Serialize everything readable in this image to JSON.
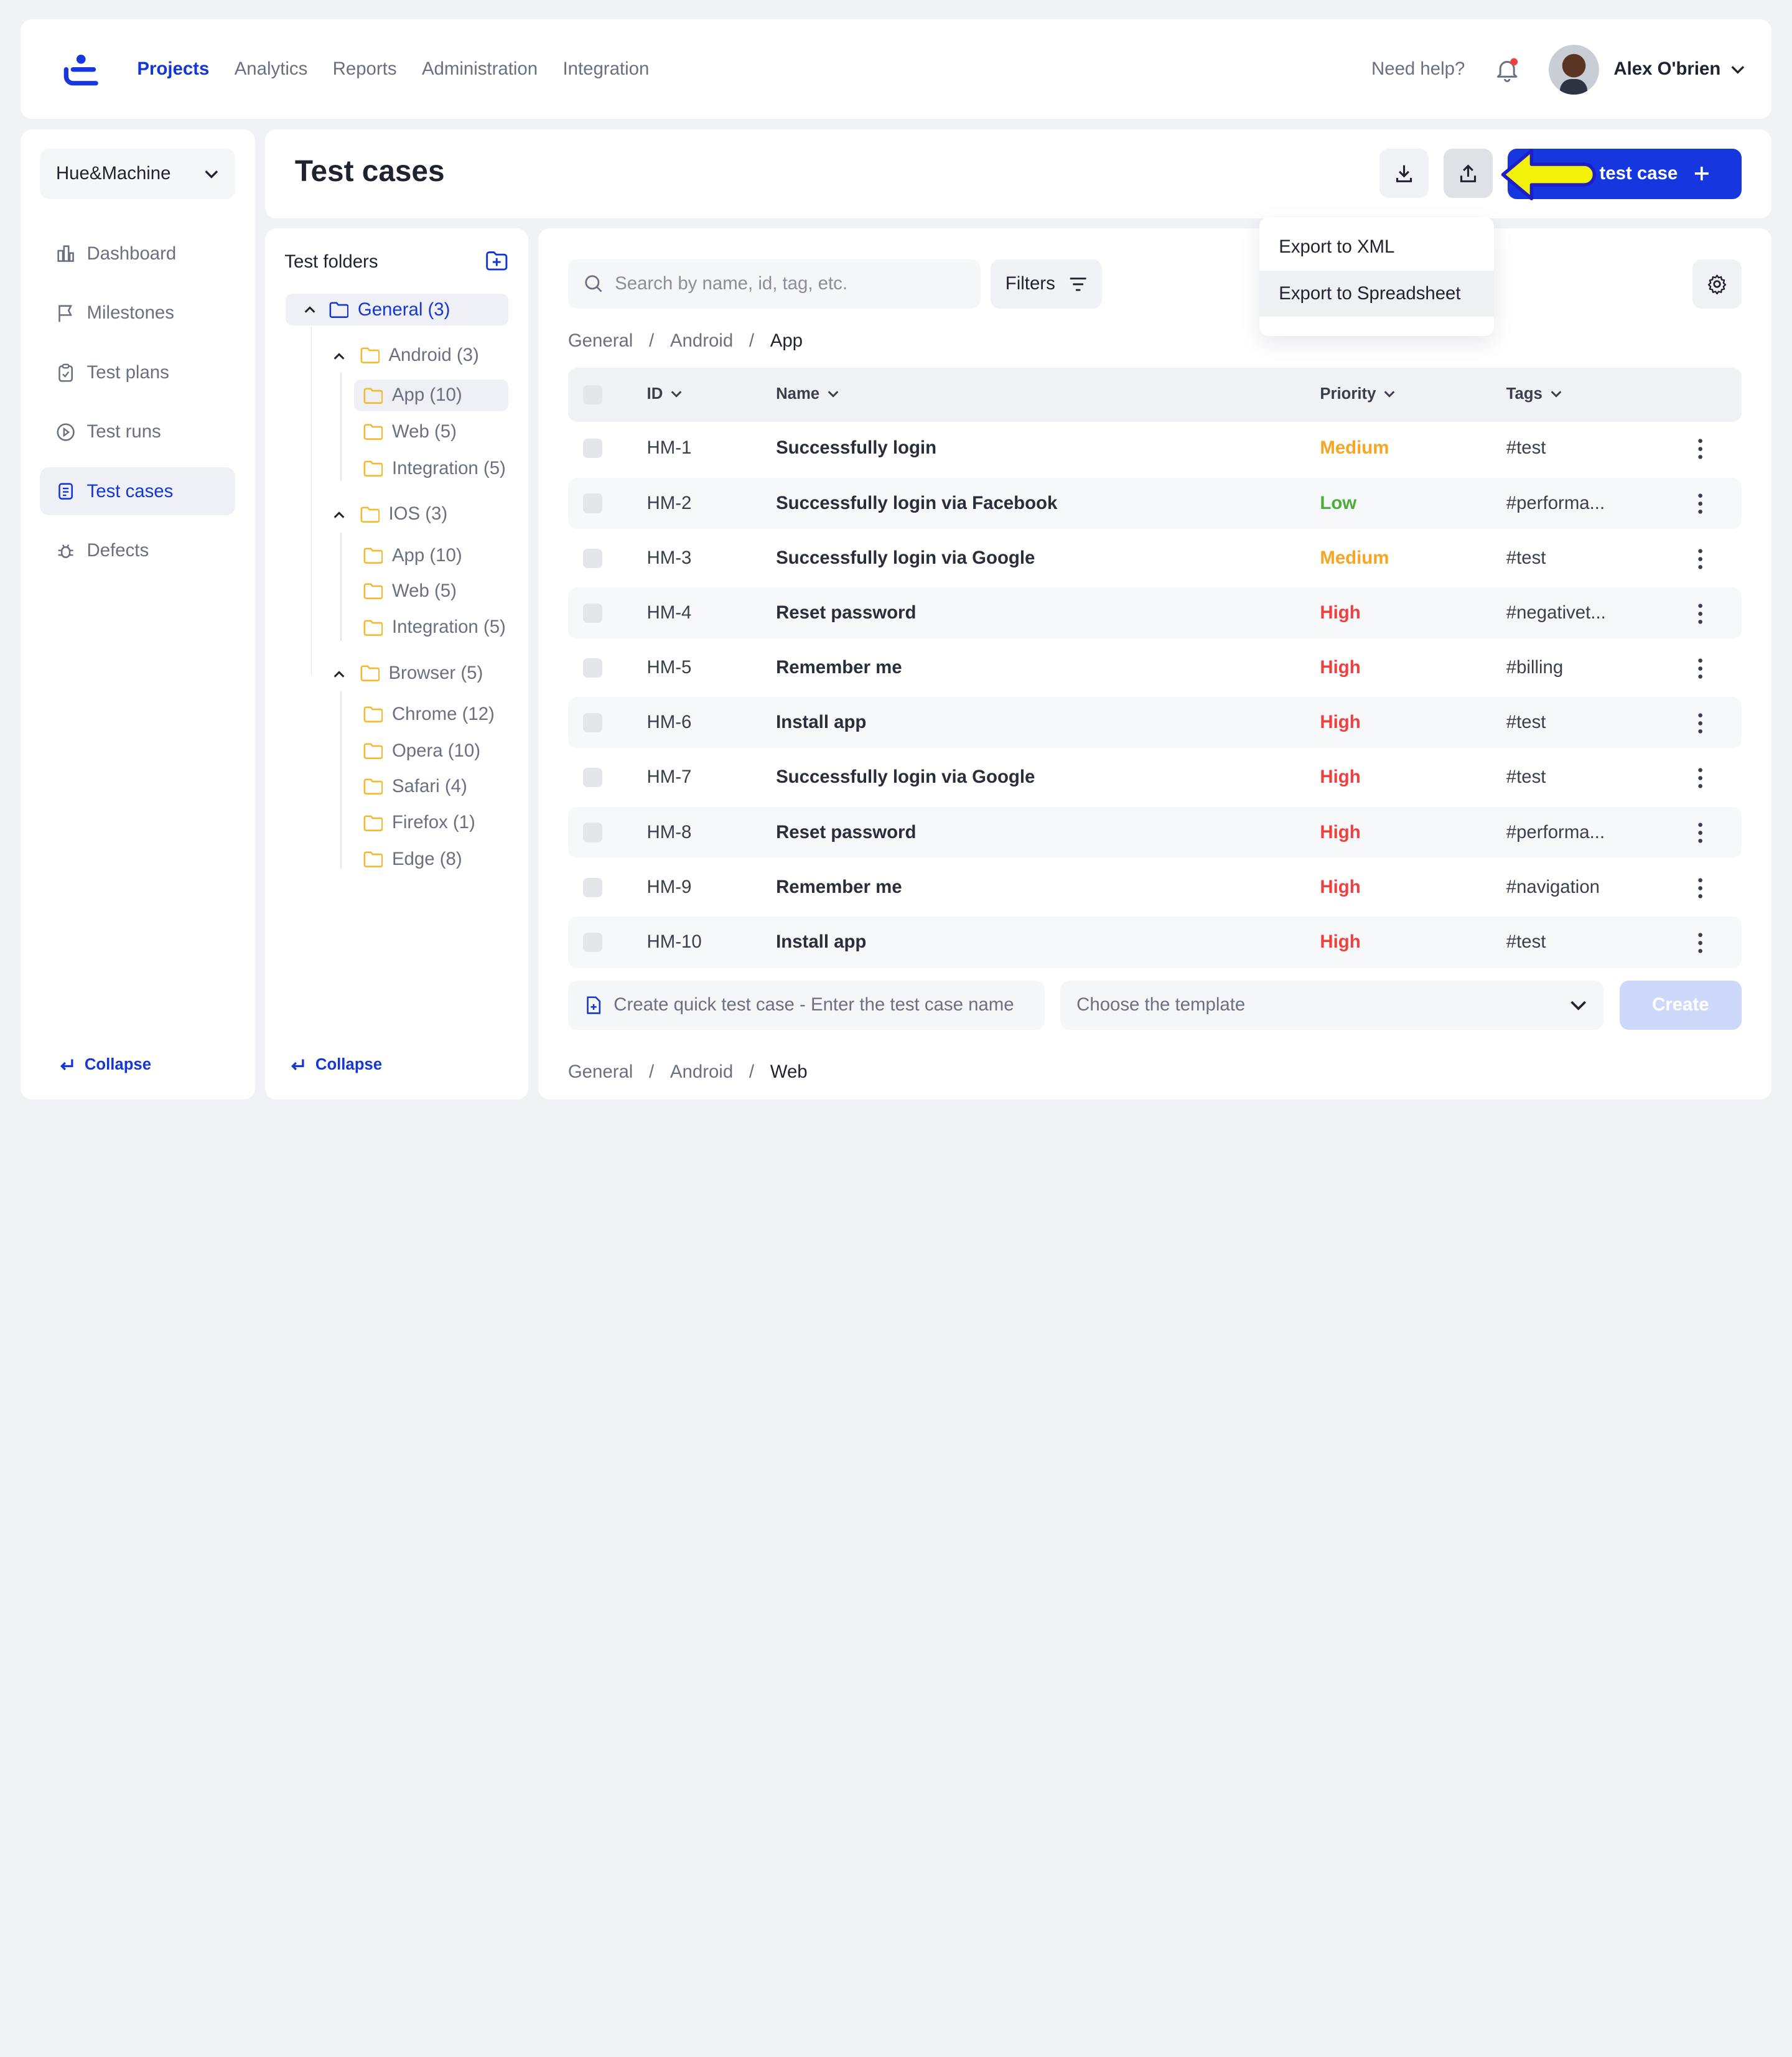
{
  "nav": {
    "items": [
      "Projects",
      "Analytics",
      "Reports",
      "Administration",
      "Integration"
    ],
    "help": "Need help?",
    "user_name": "Alex O'brien"
  },
  "sidebar": {
    "project": "Hue&Machine",
    "items": [
      "Dashboard",
      "Milestones",
      "Test plans",
      "Test runs",
      "Test cases",
      "Defects"
    ],
    "active": "Test cases",
    "collapse": "Collapse"
  },
  "header": {
    "title": "Test cases",
    "new_button": "test case"
  },
  "export_menu": {
    "items": [
      "Export to XML",
      "Export to Spreadsheet"
    ],
    "highlighted": "Export to Spreadsheet"
  },
  "folders": {
    "title": "Test folders",
    "tree": [
      {
        "label": "General (3)"
      },
      {
        "label": "Android (3)"
      },
      {
        "label": "App (10)"
      },
      {
        "label": "Web (5)"
      },
      {
        "label": "Integration (5)"
      },
      {
        "label": "IOS (3)"
      },
      {
        "label": "App (10)"
      },
      {
        "label": "Web (5)"
      },
      {
        "label": "Integration (5)"
      },
      {
        "label": "Browser (5)"
      },
      {
        "label": "Chrome (12)"
      },
      {
        "label": "Opera (10)"
      },
      {
        "label": "Safari (4)"
      },
      {
        "label": "Firefox (1)"
      },
      {
        "label": "Edge (8)"
      }
    ],
    "collapse": "Collapse"
  },
  "toolbar": {
    "search_placeholder": "Search by name, id, tag, etc.",
    "filters": "Filters"
  },
  "breadcrumb_top": [
    "General",
    "Android",
    "App"
  ],
  "breadcrumb_bottom": [
    "General",
    "Android",
    "Web"
  ],
  "table": {
    "headers": {
      "id": "ID",
      "name": "Name",
      "priority": "Priority",
      "tags": "Tags"
    },
    "rows": [
      {
        "id": "HM-1",
        "name": "Successfully login",
        "priority": "Medium",
        "tag": "#test"
      },
      {
        "id": "HM-2",
        "name": "Successfully login via Facebook",
        "priority": "Low",
        "tag": "#performa..."
      },
      {
        "id": "HM-3",
        "name": "Successfully login via Google",
        "priority": "Medium",
        "tag": "#test"
      },
      {
        "id": "HM-4",
        "name": "Reset password",
        "priority": "High",
        "tag": "#negativet..."
      },
      {
        "id": "HM-5",
        "name": "Remember me",
        "priority": "High",
        "tag": "#billing"
      },
      {
        "id": "HM-6",
        "name": "Install app",
        "priority": "High",
        "tag": "#test"
      },
      {
        "id": "HM-7",
        "name": "Successfully login via Google",
        "priority": "High",
        "tag": "#test"
      },
      {
        "id": "HM-8",
        "name": "Reset password",
        "priority": "High",
        "tag": "#performa..."
      },
      {
        "id": "HM-9",
        "name": "Remember me",
        "priority": "High",
        "tag": "#navigation"
      },
      {
        "id": "HM-10",
        "name": "Install app",
        "priority": "High",
        "tag": "#test"
      }
    ]
  },
  "quick_create": {
    "placeholder": "Create quick test case - Enter the test case name",
    "template_placeholder": "Choose the template",
    "create": "Create"
  },
  "colors": {
    "accent": "#1436d6",
    "button": "#1636e0",
    "medium": "#f5a623",
    "low": "#4cae3a",
    "high": "#ef3f3f",
    "highlight_arrow": "#f2f20a"
  }
}
